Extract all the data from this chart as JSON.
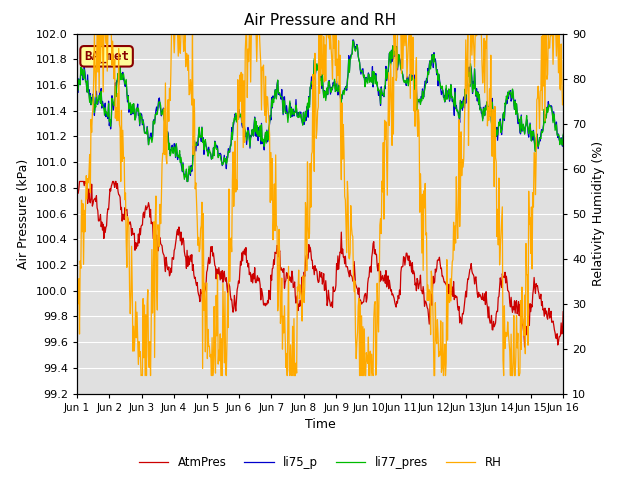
{
  "title": "Air Pressure and RH",
  "xlabel": "Time",
  "ylabel_left": "Air Pressure (kPa)",
  "ylabel_right": "Relativity Humidity (%)",
  "ylim_left": [
    99.2,
    102.0
  ],
  "ylim_right": [
    10,
    90
  ],
  "yticks_left": [
    99.2,
    99.4,
    99.6,
    99.8,
    100.0,
    100.2,
    100.4,
    100.6,
    100.8,
    101.0,
    101.2,
    101.4,
    101.6,
    101.8,
    102.0
  ],
  "yticks_right": [
    10,
    20,
    30,
    40,
    50,
    60,
    70,
    80,
    90
  ],
  "xtick_labels": [
    "Jun 1",
    "Jun 2",
    "Jun 3",
    "Jun 4",
    "Jun 5",
    "Jun 6",
    "Jun 7",
    "Jun 8",
    "Jun 9",
    "Jun 10",
    "Jun 11",
    "Jun 12",
    "Jun 13",
    "Jun 14",
    "Jun 15",
    "Jun 16"
  ],
  "colors": {
    "AtmPres": "#cc0000",
    "li75_p": "#0000cc",
    "li77_pres": "#00bb00",
    "RH": "#ffaa00"
  },
  "annotation_text": "BA_met",
  "annotation_color": "#880000",
  "annotation_bg": "#ffff99",
  "bg_color": "#e0e0e0",
  "grid_color": "#ffffff",
  "fig_width": 6.4,
  "fig_height": 4.8,
  "dpi": 100
}
